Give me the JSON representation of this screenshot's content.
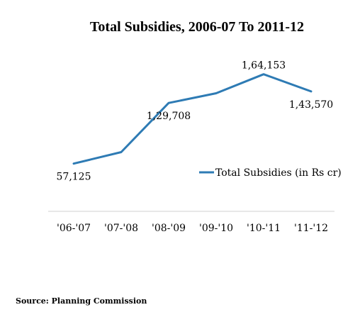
{
  "chart_data": {
    "type": "line",
    "title": "Total Subsidies, 2006-07 To 2011-12",
    "categories": [
      "'06-'07",
      "'07-'08",
      "'08-'09",
      "'09-'10",
      "'10-'11",
      "'11-'12"
    ],
    "series": [
      {
        "name": "Total Subsidies (in Rs cr)",
        "values": [
          57125,
          70926,
          129708,
          141351,
          164153,
          143570
        ],
        "color": "#2e7bb4"
      }
    ],
    "data_labels": [
      {
        "index": 0,
        "text": "57,125",
        "placement": "below"
      },
      {
        "index": 2,
        "text": "1,29,708",
        "placement": "below"
      },
      {
        "index": 4,
        "text": "1,64,153",
        "placement": "above"
      },
      {
        "index": 5,
        "text": "1,43,570",
        "placement": "below"
      }
    ],
    "xlabel": "",
    "ylabel": "",
    "ylim": [
      0,
      180000
    ],
    "grid": false,
    "legend_position": "right",
    "source": "Source: Planning Commission"
  }
}
